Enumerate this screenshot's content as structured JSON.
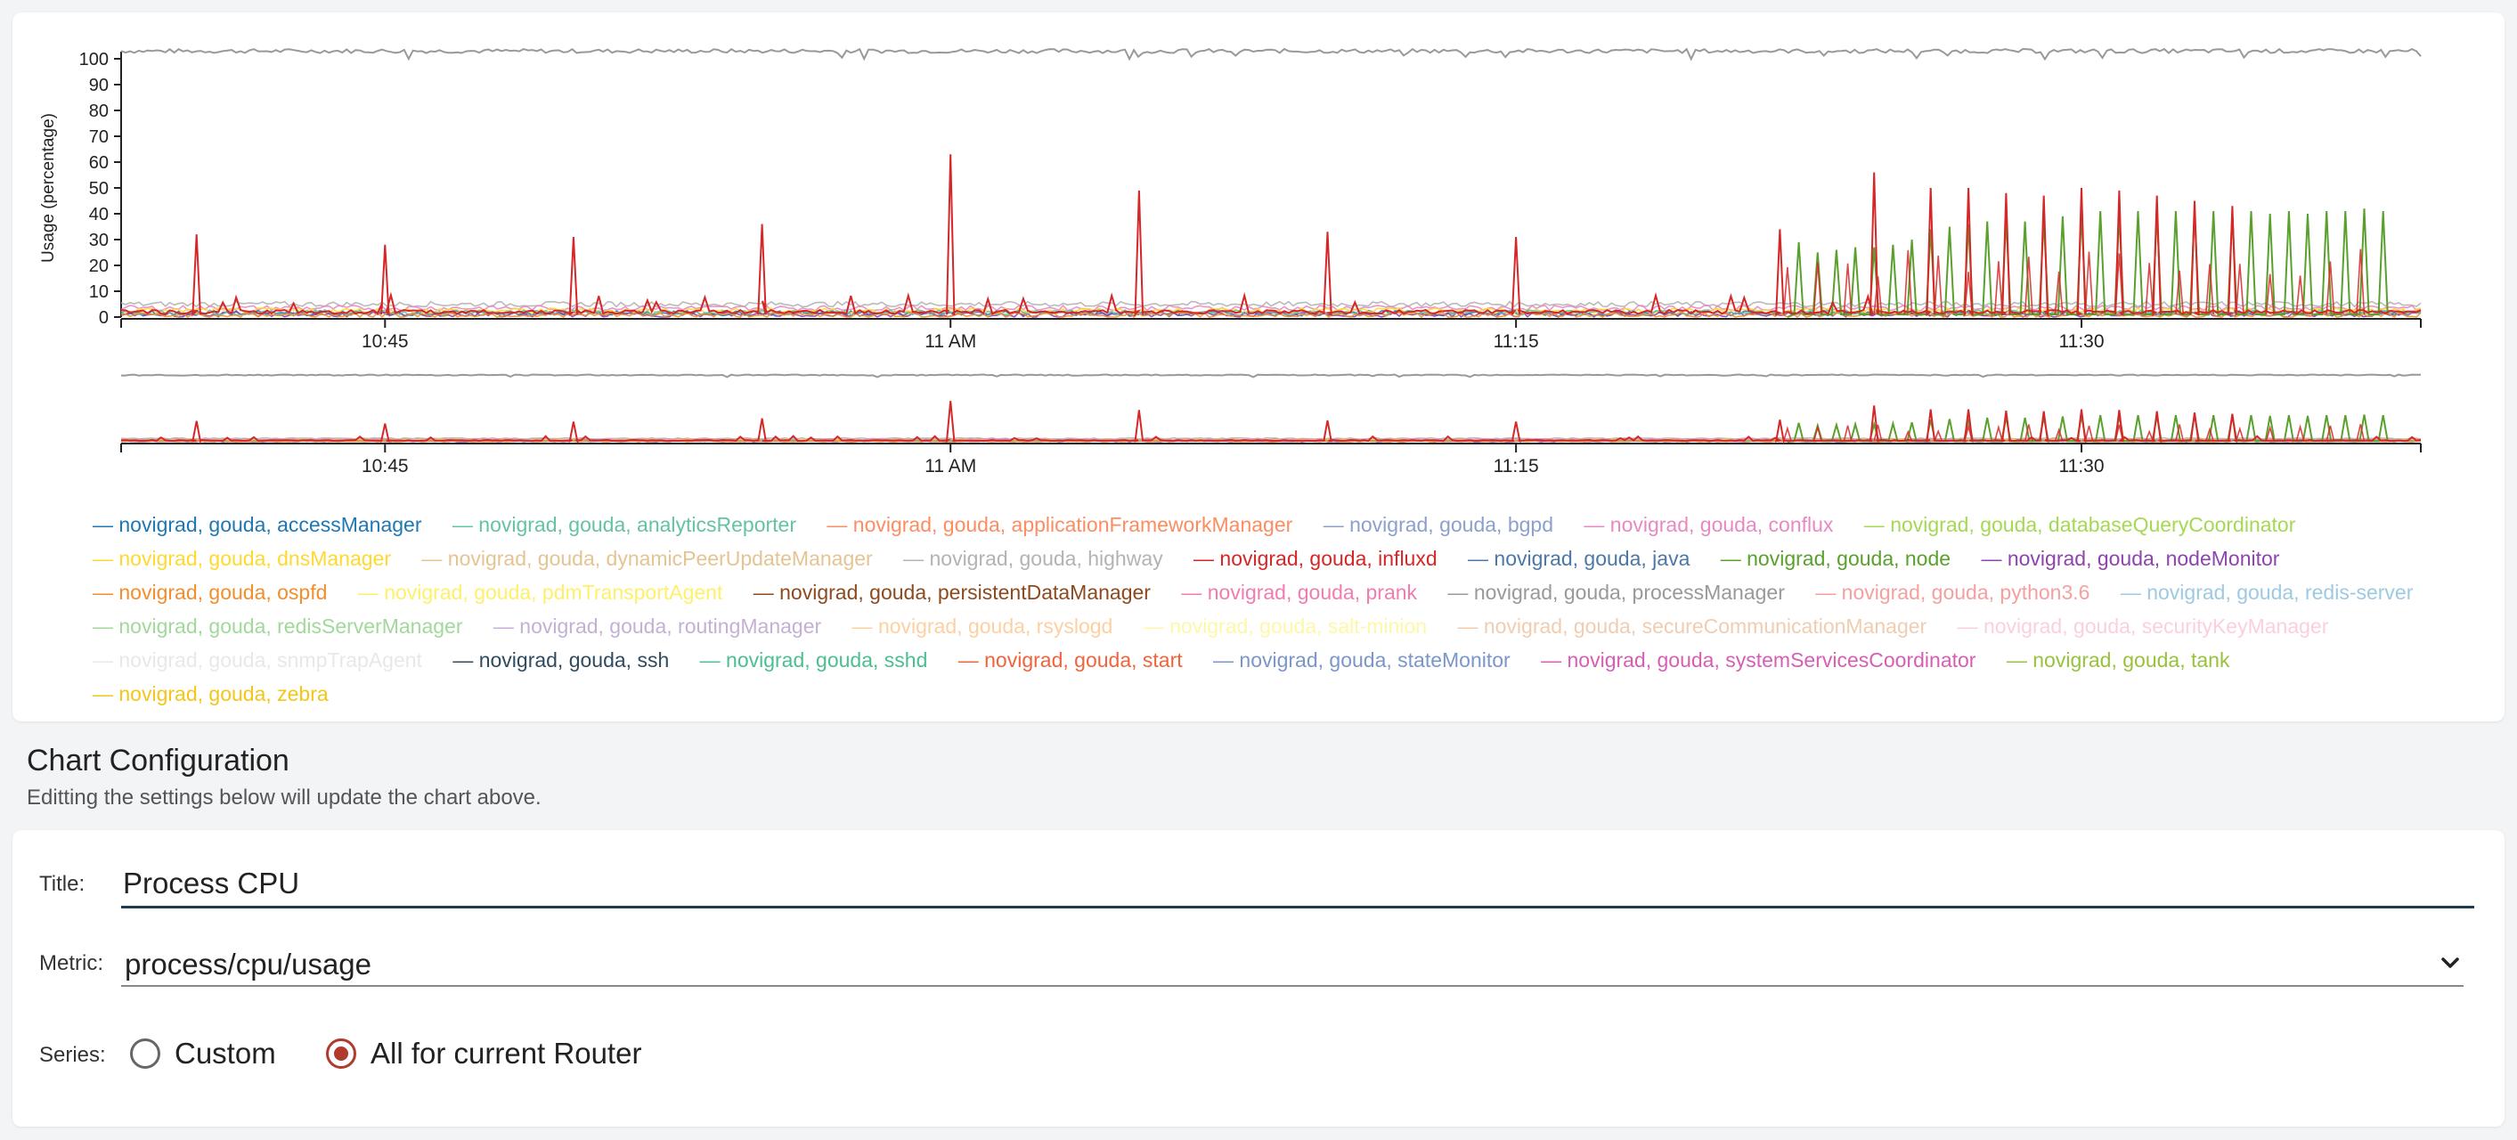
{
  "chart_data": {
    "type": "line",
    "xlabel": "",
    "ylabel": "Usage (percentage)",
    "ylim": [
      0,
      100
    ],
    "yticks": [
      "0",
      "10",
      "20",
      "30",
      "40",
      "50",
      "60",
      "70",
      "80",
      "90",
      "100"
    ],
    "xlim_minutes": [
      1,
      62
    ],
    "xticks": [
      {
        "label": "10:45",
        "minute": 8
      },
      {
        "label": "11 AM",
        "minute": 23
      },
      {
        "label": "11:15",
        "minute": 38
      },
      {
        "label": "11:30",
        "minute": 53
      }
    ],
    "grid": false,
    "legend_position": "bottom",
    "has_overview_brush": true,
    "series_highlight": {
      "top_line": {
        "name": "novigrad, gouda, processManager",
        "color": "#999999",
        "value": 103
      },
      "influxd": {
        "name": "novigrad, gouda, influxd",
        "color": "#d62728",
        "baseline": 2,
        "spikes": [
          {
            "minute": 3,
            "value": 32
          },
          {
            "minute": 8,
            "value": 28
          },
          {
            "minute": 13,
            "value": 31
          },
          {
            "minute": 18,
            "value": 36
          },
          {
            "minute": 23,
            "value": 63
          },
          {
            "minute": 28,
            "value": 49
          },
          {
            "minute": 33,
            "value": 33
          },
          {
            "minute": 38,
            "value": 31
          },
          {
            "minute": 45,
            "value": 34
          },
          {
            "minute": 47.5,
            "value": 56
          },
          {
            "minute": 49,
            "value": 50
          },
          {
            "minute": 50,
            "value": 50
          },
          {
            "minute": 51,
            "value": 48
          },
          {
            "minute": 52,
            "value": 47
          },
          {
            "minute": 53,
            "value": 50
          },
          {
            "minute": 54,
            "value": 49
          },
          {
            "minute": 55,
            "value": 47
          },
          {
            "minute": 56,
            "value": 45
          },
          {
            "minute": 57,
            "value": 43
          }
        ]
      },
      "node": {
        "name": "novigrad, gouda, node",
        "color": "#5aa02c",
        "start_minute": 45.5,
        "values": [
          29,
          25,
          26,
          27,
          27,
          28,
          30,
          34,
          35,
          36,
          37,
          38,
          37,
          38,
          39,
          40,
          41,
          40,
          41,
          40,
          41,
          41,
          41,
          40,
          41,
          40,
          41,
          40,
          41,
          41,
          42,
          41
        ]
      }
    },
    "series": [
      {
        "name": "novigrad, gouda, accessManager",
        "color": "#1f77b4"
      },
      {
        "name": "novigrad, gouda, analyticsReporter",
        "color": "#66c2a5"
      },
      {
        "name": "novigrad, gouda, applicationFrameworkManager",
        "color": "#fc8d62"
      },
      {
        "name": "novigrad, gouda, bgpd",
        "color": "#8da0cb"
      },
      {
        "name": "novigrad, gouda, conflux",
        "color": "#e78ac3"
      },
      {
        "name": "novigrad, gouda, databaseQueryCoordinator",
        "color": "#a6d854"
      },
      {
        "name": "novigrad, gouda, dnsManager",
        "color": "#ffd92f"
      },
      {
        "name": "novigrad, gouda, dynamicPeerUpdateManager",
        "color": "#e5c494"
      },
      {
        "name": "novigrad, gouda, highway",
        "color": "#b3b3b3"
      },
      {
        "name": "novigrad, gouda, influxd",
        "color": "#d62728"
      },
      {
        "name": "novigrad, gouda, java",
        "color": "#4c78a8"
      },
      {
        "name": "novigrad, gouda, node",
        "color": "#5aa02c"
      },
      {
        "name": "novigrad, gouda, nodeMonitor",
        "color": "#8e44ad"
      },
      {
        "name": "novigrad, gouda, ospfd",
        "color": "#f28e2b"
      },
      {
        "name": "novigrad, gouda, pdmTransportAgent",
        "color": "#fff06a"
      },
      {
        "name": "novigrad, gouda, persistentDataManager",
        "color": "#8c4a1e"
      },
      {
        "name": "novigrad, gouda, prank",
        "color": "#f17cb0"
      },
      {
        "name": "novigrad, gouda, processManager",
        "color": "#999999"
      },
      {
        "name": "novigrad, gouda, python3.6",
        "color": "#f4a0a0"
      },
      {
        "name": "novigrad, gouda, redis-server",
        "color": "#9ecae1"
      },
      {
        "name": "novigrad, gouda, redisServerManager",
        "color": "#a1d99b"
      },
      {
        "name": "novigrad, gouda, routingManager",
        "color": "#c5b0d5"
      },
      {
        "name": "novigrad, gouda, rsyslogd",
        "color": "#fdd0a2"
      },
      {
        "name": "novigrad, gouda, salt-minion",
        "color": "#fff7a8"
      },
      {
        "name": "novigrad, gouda, secureCommunicationManager",
        "color": "#f0cdb0"
      },
      {
        "name": "novigrad, gouda, securityKeyManager",
        "color": "#fbcfe0"
      },
      {
        "name": "novigrad, gouda, snmpTrapAgent",
        "color": "#e8e8e8"
      },
      {
        "name": "novigrad, gouda, ssh",
        "color": "#2f4b5f"
      },
      {
        "name": "novigrad, gouda, sshd",
        "color": "#4bbf8f"
      },
      {
        "name": "novigrad, gouda, start",
        "color": "#f0643c"
      },
      {
        "name": "novigrad, gouda, stateMonitor",
        "color": "#7b96c8"
      },
      {
        "name": "novigrad, gouda, systemServicesCoordinator",
        "color": "#d65fb4"
      },
      {
        "name": "novigrad, gouda, tank",
        "color": "#98c23c"
      },
      {
        "name": "novigrad, gouda, zebra",
        "color": "#f5c518"
      }
    ]
  },
  "config": {
    "heading": "Chart Configuration",
    "subtext": "Editting the settings below will update the chart above.",
    "title_label": "Title:",
    "title_value": "Process CPU",
    "metric_label": "Metric:",
    "metric_value": "process/cpu/usage",
    "series_label": "Series:",
    "series_options": [
      {
        "label": "Custom",
        "checked": false
      },
      {
        "label": "All for current Router",
        "checked": true
      }
    ],
    "accent_color": "#b03a2e"
  }
}
